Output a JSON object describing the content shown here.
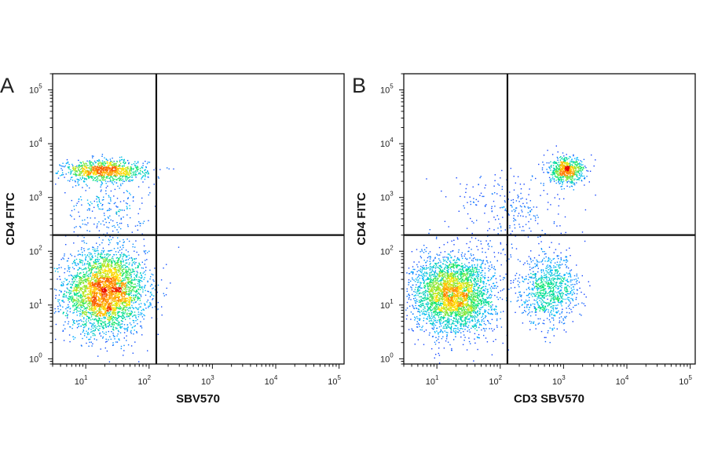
{
  "chart_data": [
    {
      "type": "scatter",
      "panel_label": "A",
      "title": "",
      "xlabel": "SBV570",
      "ylabel": "CD4 FITC",
      "x_scale": "log",
      "y_scale": "log",
      "xlim": [
        3,
        120000
      ],
      "ylim": [
        0.8,
        200000
      ],
      "x_ticks": [
        {
          "v": 10,
          "b": "10",
          "e": "1"
        },
        {
          "v": 100,
          "b": "10",
          "e": "2"
        },
        {
          "v": 1000,
          "b": "10",
          "e": "3"
        },
        {
          "v": 10000,
          "b": "10",
          "e": "4"
        },
        {
          "v": 100000,
          "b": "10",
          "e": "5"
        }
      ],
      "y_ticks": [
        {
          "v": 1,
          "b": "10",
          "e": "0"
        },
        {
          "v": 10,
          "b": "10",
          "e": "1"
        },
        {
          "v": 100,
          "b": "10",
          "e": "2"
        },
        {
          "v": 1000,
          "b": "10",
          "e": "3"
        },
        {
          "v": 10000,
          "b": "10",
          "e": "4"
        },
        {
          "v": 100000,
          "b": "10",
          "e": "5"
        }
      ],
      "gates": {
        "x": 130,
        "y": 200
      },
      "populations": [
        {
          "x": 20,
          "y": 18,
          "sx": 0.32,
          "sy": 0.38,
          "n": 3400
        },
        {
          "x": 20,
          "y": 3200,
          "sx": 0.33,
          "sy": 0.1,
          "n": 1000
        },
        {
          "x": 20,
          "y": 600,
          "sx": 0.32,
          "sy": 0.28,
          "n": 220
        }
      ],
      "colormap": [
        "#1a1aff",
        "#00b7ff",
        "#00e676",
        "#ffe600",
        "#ff7a00",
        "#e60000"
      ]
    },
    {
      "type": "scatter",
      "panel_label": "B",
      "title": "",
      "xlabel": "CD3 SBV570",
      "ylabel": "CD4 FITC",
      "x_scale": "log",
      "y_scale": "log",
      "xlim": [
        3,
        120000
      ],
      "ylim": [
        0.8,
        200000
      ],
      "x_ticks": [
        {
          "v": 10,
          "b": "10",
          "e": "1"
        },
        {
          "v": 100,
          "b": "10",
          "e": "2"
        },
        {
          "v": 1000,
          "b": "10",
          "e": "3"
        },
        {
          "v": 10000,
          "b": "10",
          "e": "4"
        },
        {
          "v": 100000,
          "b": "10",
          "e": "5"
        }
      ],
      "y_ticks": [
        {
          "v": 1,
          "b": "10",
          "e": "0"
        },
        {
          "v": 10,
          "b": "10",
          "e": "1"
        },
        {
          "v": 100,
          "b": "10",
          "e": "2"
        },
        {
          "v": 1000,
          "b": "10",
          "e": "3"
        },
        {
          "v": 10000,
          "b": "10",
          "e": "4"
        },
        {
          "v": 100000,
          "b": "10",
          "e": "5"
        }
      ],
      "gates": {
        "x": 130,
        "y": 200
      },
      "populations": [
        {
          "x": 18,
          "y": 16,
          "sx": 0.32,
          "sy": 0.36,
          "n": 3200
        },
        {
          "x": 1100,
          "y": 3200,
          "sx": 0.14,
          "sy": 0.12,
          "n": 650
        },
        {
          "x": 600,
          "y": 20,
          "sx": 0.22,
          "sy": 0.32,
          "n": 900
        },
        {
          "x": 150,
          "y": 600,
          "sx": 0.45,
          "sy": 0.4,
          "n": 260
        }
      ],
      "colormap": [
        "#1a1aff",
        "#00b7ff",
        "#00e676",
        "#ffe600",
        "#ff7a00",
        "#e60000"
      ]
    }
  ]
}
